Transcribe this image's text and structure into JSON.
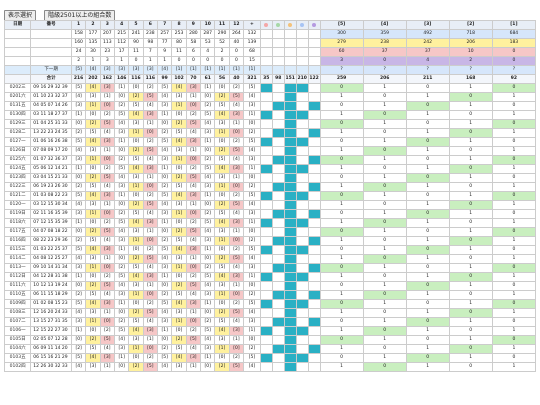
{
  "toolbar": {
    "btn1": "表示選択",
    "btn2": "階級2501以上の組合数"
  },
  "header": {
    "date": "日期",
    "num": "番号",
    "cols": [
      "1",
      "2",
      "3",
      "4",
      "5",
      "6",
      "7",
      "8",
      "9",
      "10",
      "11",
      "12",
      "+"
    ],
    "groups": [
      "[5]",
      "[4]",
      "[3]",
      "[2]",
      "[1]"
    ]
  },
  "colors": {
    "dot1": "#f4a7a7",
    "dot2": "#a7d8a7",
    "dot3": "#f4c27a",
    "dot4": "#a7c4f4",
    "dot5": "#b59be0"
  },
  "stats": {
    "r1": [
      "158",
      "177",
      "207",
      "215",
      "241",
      "238",
      "257",
      "253",
      "280",
      "287",
      "290",
      "264",
      "132"
    ],
    "r2": [
      "160",
      "135",
      "113",
      "112",
      "90",
      "98",
      "77",
      "80",
      "58",
      "53",
      "52",
      "40",
      "139"
    ],
    "r3": [
      "24",
      "30",
      "23",
      "17",
      "11",
      "7",
      "9",
      "11",
      "6",
      "4",
      "2",
      "0",
      "68"
    ],
    "r4": [
      "2",
      "1",
      "3",
      "1",
      "0",
      "1",
      "1",
      "0",
      "0",
      "0",
      "0",
      "0",
      "15"
    ],
    "g1": [
      "300",
      "359",
      "492",
      "718",
      "684"
    ],
    "g2": [
      "279",
      "238",
      "242",
      "206",
      "183"
    ],
    "g3": [
      "60",
      "37",
      "37",
      "10",
      "0"
    ],
    "g4": [
      "3",
      "0",
      "4",
      "2",
      "0"
    ]
  },
  "next": {
    "label": "下一期",
    "cells": [
      "[5]",
      "[4]",
      "[3]",
      "[3]",
      "[3]",
      "[3]",
      "[4]",
      "[1]",
      "[1]",
      "[1]",
      "[1]",
      "[1]",
      "[1]"
    ]
  },
  "sum": {
    "label": "合计",
    "cells": [
      "216",
      "202",
      "162",
      "146",
      "116",
      "116",
      "99",
      "102",
      "70",
      "61",
      "56",
      "40",
      "321"
    ],
    "extra": [
      "35",
      "98",
      "151",
      "210",
      "122"
    ],
    "g": [
      "259",
      "206",
      "211",
      "168",
      "92"
    ]
  },
  "rows": [
    {
      "date": "0202三",
      "nums": "09 16 29 32 39"
    },
    {
      "date": "0201六",
      "nums": "01 10 23 32 37"
    },
    {
      "date": "0131五",
      "nums": "04 05 07 14 26"
    },
    {
      "date": "0130四",
      "nums": "03 11 18 27 37"
    },
    {
      "date": "0129三",
      "nums": "01 04 25 31 33"
    },
    {
      "date": "0128二",
      "nums": "13 22 23 24 35"
    },
    {
      "date": "0127一",
      "nums": "01 06 16 26 38"
    },
    {
      "date": "0126日",
      "nums": "07 08 09 17 20"
    },
    {
      "date": "0125六",
      "nums": "01 07 32 36 37"
    },
    {
      "date": "0124五",
      "nums": "05 06 12 14 21"
    },
    {
      "date": "0123四",
      "nums": "03 04 15 21 33"
    },
    {
      "date": "0122三",
      "nums": "06 19 23 26 30"
    },
    {
      "date": "0121二",
      "nums": "01 03 08 22 23"
    },
    {
      "date": "0120一",
      "nums": "03 12 15 30 34"
    },
    {
      "date": "0119日",
      "nums": "02 11 16 35 39"
    },
    {
      "date": "0118六",
      "nums": "07 12 15 35 39"
    },
    {
      "date": "0117五",
      "nums": "04 07 08 18 22"
    },
    {
      "date": "0116四",
      "nums": "08 22 23 29 36"
    },
    {
      "date": "0115三",
      "nums": "01 03 22 25 37"
    },
    {
      "date": "0114二",
      "nums": "04 08 12 25 27"
    },
    {
      "date": "0113一",
      "nums": "09 10 14 31 34"
    },
    {
      "date": "0112日",
      "nums": "04 12 28 31 38"
    },
    {
      "date": "0111六",
      "nums": "10 12 13 19 24"
    },
    {
      "date": "0110五",
      "nums": "06 11 15 18 29"
    },
    {
      "date": "0109四",
      "nums": "01 02 08 15 23"
    },
    {
      "date": "0108三",
      "nums": "12 16 20 24 33"
    },
    {
      "date": "0107二",
      "nums": "13 15 27 31 35"
    },
    {
      "date": "0106一",
      "nums": "12 15 22 27 30"
    },
    {
      "date": "0105日",
      "nums": "02 05 07 12 28"
    },
    {
      "date": "0104六",
      "nums": "06 09 11 14 20"
    },
    {
      "date": "0103五",
      "nums": "06 15 16 21 29"
    },
    {
      "date": "0102四",
      "nums": "12 26 30 32 33"
    }
  ]
}
